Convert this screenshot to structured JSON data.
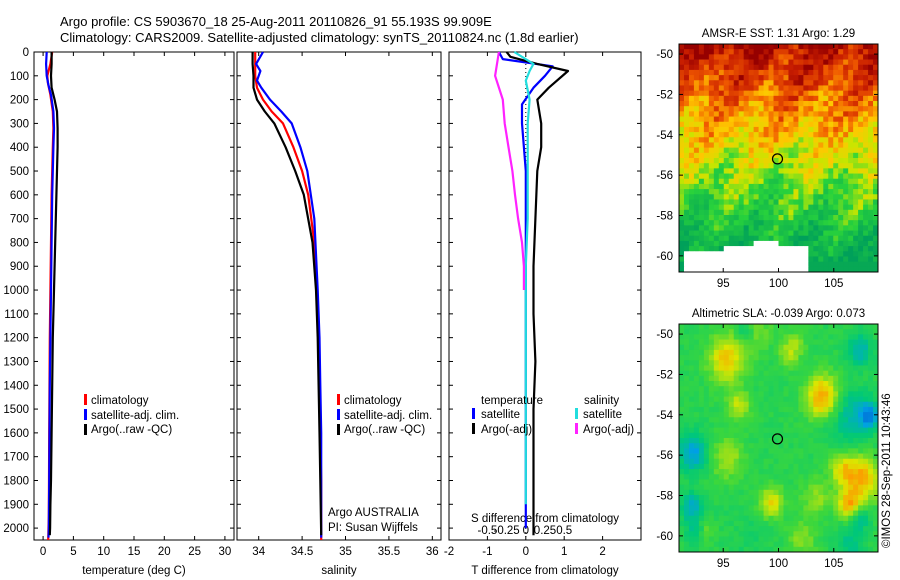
{
  "header": {
    "line1": "Argo profile: CS 5903670_18 25-Aug-2011 20110826_91 55.193S 99.909E",
    "line2": "Climatology: CARS2009. Satellite-adjusted climatology: synTS_20110824.nc (1.8d earlier)"
  },
  "colors": {
    "climatology": "#ff0000",
    "satellite_adj": "#0000ff",
    "argo": "#000000",
    "sat_salinity": "#22dddd",
    "argo_salinity": "#ff22ff"
  },
  "legend_profiles": [
    "climatology",
    "satellite-adj. clim.",
    "Argo(..raw -QC)"
  ],
  "legend_diff": {
    "temperature_heading": "temperature",
    "salinity_heading": "salinity",
    "t_sat": "satellite",
    "t_argo": "Argo(-adj)",
    "s_sat": "satellite",
    "s_argo": "Argo(-adj)"
  },
  "annotations": {
    "institution": "Argo AUSTRALIA",
    "pi": "PI: Susan Wijffels",
    "watermark": "©IMOS 28-Sep-2011 10:43:46"
  },
  "chart_data": [
    {
      "type": "line",
      "id": "temperature",
      "xlabel": "temperature (deg C)",
      "ylim": [
        2050,
        0
      ],
      "xlim": [
        -1.5,
        31.5
      ],
      "xticks": [
        0,
        5,
        10,
        15,
        20,
        25,
        30
      ],
      "yticks": [
        0,
        100,
        200,
        300,
        400,
        500,
        600,
        700,
        800,
        900,
        1000,
        1100,
        1200,
        1300,
        1400,
        1500,
        1600,
        1700,
        1800,
        1900,
        2000
      ],
      "series": [
        {
          "name": "climatology",
          "color": "#ff0000",
          "x": [
            1.5,
            1.2,
            0.7,
            0.8,
            1.2,
            1.6,
            1.7,
            1.6,
            1.5,
            1.4,
            1.3,
            1.2,
            1.1,
            1.05,
            1.0,
            0.98,
            0.95,
            0.9,
            0.85
          ],
          "y": [
            0,
            50,
            100,
            130,
            180,
            250,
            320,
            400,
            500,
            600,
            800,
            1000,
            1200,
            1400,
            1600,
            1800,
            1950,
            2000,
            2050
          ]
        },
        {
          "name": "satellite-adj. clim.",
          "color": "#0000ff",
          "x": [
            0.6,
            0.5,
            0.6,
            0.9,
            1.3,
            1.7,
            1.8,
            1.7,
            1.6,
            1.5,
            1.4,
            1.3,
            1.2,
            1.1,
            1.05,
            1.0,
            0.95,
            0.9
          ],
          "y": [
            0,
            50,
            100,
            140,
            180,
            250,
            320,
            400,
            500,
            600,
            800,
            1000,
            1200,
            1400,
            1600,
            1800,
            2000,
            2040
          ]
        },
        {
          "name": "Argo(..raw -QC)",
          "color": "#000000",
          "x": [
            1.4,
            1.4,
            1.3,
            1.4,
            1.9,
            2.3,
            2.4,
            2.4,
            2.3,
            2.2,
            2.0,
            1.8,
            1.6,
            1.5,
            1.4,
            1.3,
            1.2,
            1.15,
            1.1
          ],
          "y": [
            0,
            50,
            100,
            150,
            200,
            250,
            320,
            400,
            500,
            600,
            800,
            1000,
            1200,
            1400,
            1600,
            1800,
            1900,
            2000,
            2030
          ]
        }
      ]
    },
    {
      "type": "line",
      "id": "salinity",
      "xlabel": "salinity",
      "ylim": [
        2050,
        0
      ],
      "xlim": [
        33.75,
        36.1
      ],
      "xticks": [
        34,
        34.5,
        35,
        35.5,
        36
      ],
      "xticklabels": [
        "34",
        "34.5",
        "35",
        "35.5",
        "36"
      ],
      "series": [
        {
          "name": "climatology",
          "color": "#ff0000",
          "x": [
            33.96,
            33.96,
            33.96,
            33.98,
            34.05,
            34.15,
            34.28,
            34.4,
            34.5,
            34.57,
            34.64,
            34.67,
            34.69,
            34.7,
            34.71,
            34.72,
            34.72,
            34.72,
            34.72
          ],
          "y": [
            0,
            50,
            100,
            150,
            200,
            250,
            300,
            400,
            500,
            600,
            800,
            1000,
            1200,
            1400,
            1600,
            1800,
            1950,
            2000,
            2050
          ]
        },
        {
          "name": "satellite-adj. clim.",
          "color": "#0000ff",
          "x": [
            34.05,
            33.97,
            34.02,
            33.98,
            34.03,
            34.13,
            34.26,
            34.38,
            34.48,
            34.56,
            34.64,
            34.68,
            34.7,
            34.71,
            34.72,
            34.72,
            34.72
          ],
          "y": [
            0,
            50,
            80,
            120,
            150,
            200,
            250,
            300,
            400,
            500,
            700,
            1000,
            1200,
            1400,
            1600,
            1800,
            2040
          ]
        },
        {
          "name": "Argo(..raw -QC)",
          "color": "#000000",
          "x": [
            33.93,
            33.93,
            33.94,
            33.94,
            33.98,
            34.07,
            34.18,
            34.31,
            34.42,
            34.52,
            34.62,
            34.66,
            34.68,
            34.69,
            34.7,
            34.71,
            34.72
          ],
          "y": [
            0,
            50,
            100,
            150,
            200,
            250,
            300,
            400,
            500,
            600,
            800,
            1000,
            1200,
            1400,
            1600,
            1800,
            2030
          ]
        }
      ]
    },
    {
      "type": "line",
      "id": "differences",
      "xlabel": "T difference from climatology",
      "top_xlabel": "S difference from climatology",
      "ylim": [
        2050,
        0
      ],
      "xlim": [
        -2,
        3
      ],
      "xticks": [
        -2,
        -1,
        0,
        1,
        2
      ],
      "s_ticks": [
        "-0.5",
        "-0.25",
        "0",
        "0.25",
        "0.5"
      ],
      "series": [
        {
          "name": "temperature satellite",
          "color": "#0000ff",
          "x": [
            -0.7,
            -0.6,
            0.7,
            0.5,
            0.2,
            -0.1,
            -0.1,
            0.0,
            0.0,
            0.0,
            0.0,
            0.0,
            0.0,
            0.0,
            0.0,
            0.0
          ],
          "y": [
            0,
            30,
            60,
            100,
            150,
            220,
            300,
            500,
            700,
            900,
            1100,
            1300,
            1500,
            1700,
            1900,
            2000
          ]
        },
        {
          "name": "temperature Argo(-adj)",
          "color": "#000000",
          "x": [
            -0.5,
            -0.4,
            0.3,
            1.1,
            0.6,
            0.3,
            0.4,
            0.4,
            0.3,
            0.25,
            0.2,
            0.2,
            0.25,
            0.2,
            0.2,
            0.2,
            0.2
          ],
          "y": [
            0,
            20,
            50,
            80,
            150,
            200,
            300,
            400,
            500,
            700,
            900,
            1100,
            1300,
            1500,
            1700,
            1900,
            2030
          ]
        },
        {
          "name": "salinity satellite",
          "color": "#22dddd",
          "x": [
            -0.3,
            0.2,
            0.1,
            0.0,
            0.1,
            0.05,
            0.05,
            0.05,
            0.0,
            0.0,
            0.0,
            0.0,
            0.0,
            0.0
          ],
          "y": [
            0,
            50,
            80,
            120,
            200,
            300,
            500,
            700,
            900,
            1100,
            1300,
            1500,
            1700,
            1900
          ]
        },
        {
          "name": "salinity Argo(-adj)",
          "color": "#ff22ff",
          "x": [
            -0.7,
            -0.8,
            -0.6,
            -0.55,
            -0.45,
            -0.35,
            -0.28,
            -0.2,
            -0.1,
            -0.05,
            -0.05
          ],
          "y": [
            0,
            100,
            200,
            300,
            400,
            500,
            600,
            700,
            800,
            900,
            1000
          ]
        }
      ]
    },
    {
      "type": "heatmap",
      "id": "sst_map",
      "title": "AMSR-E SST: 1.31 Argo: 1.29",
      "xticks": [
        95,
        100,
        105
      ],
      "yticks": [
        -50,
        -52,
        -54,
        -56,
        -58,
        -60
      ],
      "xlim": [
        91,
        109
      ],
      "ylim": [
        -60.8,
        -49.5
      ],
      "argo_position": {
        "lon": 99.909,
        "lat": -55.193
      }
    },
    {
      "type": "heatmap",
      "id": "sla_map",
      "title": "Altimetric SLA: -0.039 Argo: 0.073",
      "xticks": [
        95,
        100,
        105
      ],
      "yticks": [
        -50,
        -52,
        -54,
        -56,
        -58,
        -60
      ],
      "xlim": [
        91,
        109
      ],
      "ylim": [
        -60.8,
        -49.5
      ],
      "argo_position": {
        "lon": 99.909,
        "lat": -55.193
      }
    }
  ]
}
